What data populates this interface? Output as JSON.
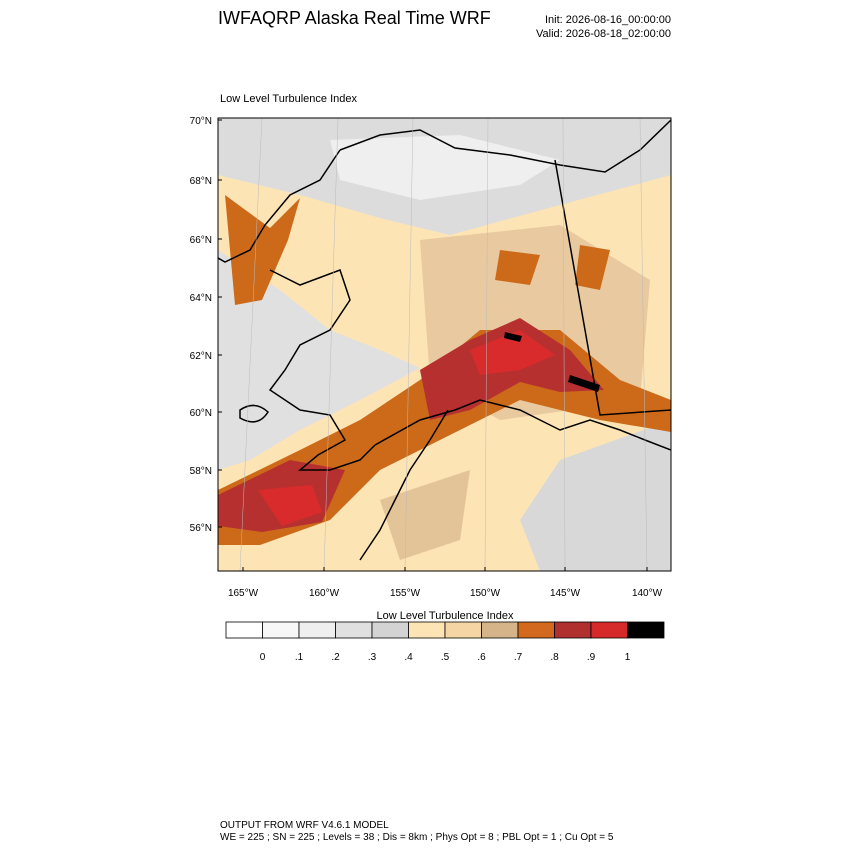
{
  "header": {
    "title": "IWFAQRP Alaska Real Time WRF",
    "init": "Init: 2026-08-16_00:00:00",
    "valid": "Valid: 2026-08-18_02:00:00"
  },
  "map": {
    "label": "Low Level Turbulence Index",
    "lat_labels": [
      "70°N",
      "68°N",
      "66°N",
      "64°N",
      "62°N",
      "60°N",
      "58°N",
      "56°N"
    ],
    "lon_labels": [
      "165°W",
      "160°W",
      "155°W",
      "150°W",
      "145°W",
      "140°W"
    ]
  },
  "colorbar": {
    "title": "Low Level Turbulence Index",
    "colors": [
      "#ffffff",
      "#f7f7f7",
      "#efefef",
      "#e0e0e0",
      "#d3d3d3",
      "#fde4b4",
      "#f5d5a3",
      "#d6b48a",
      "#d2691e",
      "#b03030",
      "#d62a2a",
      "#000000"
    ],
    "labels": [
      "0",
      ".1",
      ".2",
      ".3",
      ".4",
      ".5",
      ".6",
      ".7",
      ".8",
      ".9",
      "1"
    ]
  },
  "footer": {
    "line1": "OUTPUT FROM WRF V4.6.1 MODEL",
    "line2": "WE = 225 ; SN = 225 ; Levels = 38 ; Dis = 8km ; Phys Opt = 8 ; PBL Opt = 1 ; Cu Opt = 5"
  }
}
